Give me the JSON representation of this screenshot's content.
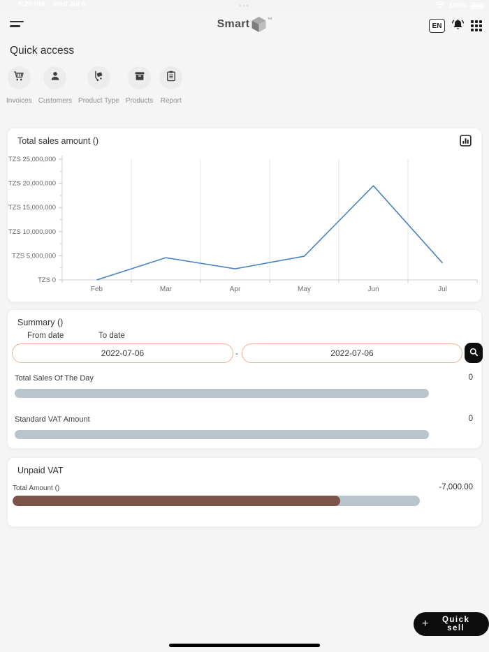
{
  "status_bar": {
    "time": "8:20 PM",
    "date": "Wed Jul 6",
    "battery_percent": "100%"
  },
  "header": {
    "logo_text": "Smart",
    "logo_tm": "™",
    "language_badge": "EN"
  },
  "quick_access": {
    "title": "Quick access",
    "items": [
      {
        "label": "Invoices",
        "icon": "cart-icon"
      },
      {
        "label": "Customers",
        "icon": "person-icon"
      },
      {
        "label": "Product Type",
        "icon": "hand-truck-icon"
      },
      {
        "label": "Products",
        "icon": "box-icon"
      },
      {
        "label": "Report",
        "icon": "clipboard-icon"
      }
    ]
  },
  "sales_card": {
    "title": "Total sales amount ()"
  },
  "chart_data": {
    "type": "line",
    "title": "Total sales amount ()",
    "categories": [
      "Feb",
      "Mar",
      "Apr",
      "May",
      "Jun",
      "Jul"
    ],
    "series": [
      {
        "name": "Total sales amount",
        "values": [
          0,
          4600000,
          2300000,
          4900000,
          19500000,
          3500000
        ]
      }
    ],
    "xlabel": "",
    "ylabel": "TZS",
    "ylim": [
      0,
      25000000
    ],
    "y_tick_step": 5000000,
    "y_ticks": [
      "TZS 0",
      "TZS 5,000,000",
      "TZS 10,000,000",
      "TZS 15,000,000",
      "TZS 20,000,000",
      "TZS 25,000,000"
    ],
    "grid": "vertical-only",
    "legend": false,
    "line_color": "#4a83c0"
  },
  "summary_card": {
    "title": "Summary ()",
    "from_label": "From date",
    "to_label": "To date",
    "from_value": "2022-07-06",
    "to_value": "2022-07-06",
    "separator": "-",
    "rows": [
      {
        "label": "Total Sales Of The Day",
        "value": "0",
        "fill_percent": 0
      },
      {
        "label": "Standard VAT Amount",
        "value": "0",
        "fill_percent": 0
      }
    ]
  },
  "unpaid_card": {
    "title": "Unpaid VAT",
    "label": "Total Amount ()",
    "value": "-7,000.00",
    "fill_percent": 80.5
  },
  "fab": {
    "plus": "+",
    "label": "Quick sell"
  },
  "colors": {
    "accent_border": "#f5ae92",
    "bar_track": "#b9c5cd",
    "bar_fill_brown": "#7b5348",
    "chart_line": "#4a83c0",
    "fab_bg": "#0d0d0d"
  }
}
